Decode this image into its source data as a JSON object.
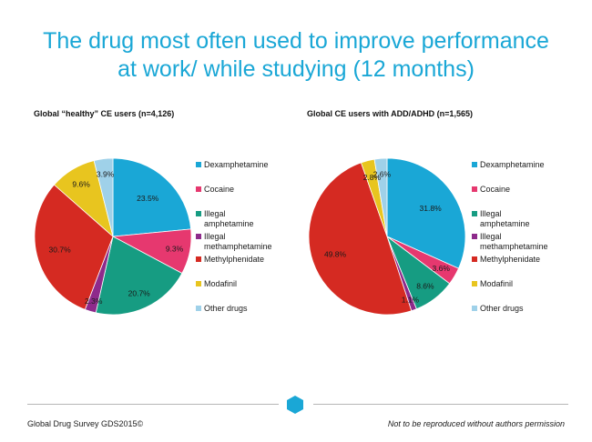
{
  "header": {
    "title_line1": "The drug most often used to improve performance",
    "title_line2": "at work/ while studying (12 months)"
  },
  "colors": {
    "title": "#1aa7d6",
    "Dexamphetamine": "#1aa7d6",
    "Cocaine": "#e6386f",
    "Illegal amphetamine": "#169c82",
    "Illegal methamphetamine": "#8e2a8b",
    "Methylphenidate": "#d52a22",
    "Modafinil": "#e8c51f",
    "Other drugs": "#9fd1e9"
  },
  "chart_data": [
    {
      "type": "pie",
      "title": "Global “healthy” CE users (n=4,126)",
      "categories": [
        "Dexamphetamine",
        "Cocaine",
        "Illegal amphetamine",
        "Illegal methamphetamine",
        "Methylphenidate",
        "Modafinil",
        "Other drugs"
      ],
      "legend_labels": [
        [
          "Dexamphetamine"
        ],
        [
          "Cocaine"
        ],
        [
          "Illegal",
          "amphetamine"
        ],
        [
          "Illegal",
          "methamphetamine"
        ],
        [
          "Methylphenidate"
        ],
        [
          "Modafinil"
        ],
        [
          "Other drugs"
        ]
      ],
      "values": [
        23.5,
        9.3,
        20.7,
        2.3,
        30.7,
        9.6,
        3.9
      ],
      "data_labels": [
        "23.5%",
        "9.3%",
        "20.7%",
        "2.3%",
        "30.7%",
        "9.6%",
        "3.9%"
      ],
      "legend_position": "right"
    },
    {
      "type": "pie",
      "title": "Global CE users with ADD/ADHD (n=1,565)",
      "categories": [
        "Dexamphetamine",
        "Cocaine",
        "Illegal amphetamine",
        "Illegal methamphetamine",
        "Methylphenidate",
        "Modafinil",
        "Other drugs"
      ],
      "legend_labels": [
        [
          "Dexamphetamine"
        ],
        [
          "Cocaine"
        ],
        [
          "Illegal",
          "amphetamine"
        ],
        [
          "Illegal",
          "methamphetamine"
        ],
        [
          "Methylphenidate"
        ],
        [
          "Modafinil"
        ],
        [
          "Other drugs"
        ]
      ],
      "values": [
        31.8,
        3.6,
        8.6,
        1.1,
        49.8,
        2.8,
        2.6
      ],
      "data_labels": [
        "31.8%",
        "3.6%",
        "8.6%",
        "1.1%",
        "49.8%",
        "2.8%",
        "2.6%"
      ],
      "legend_position": "right"
    }
  ],
  "footer": {
    "left": "Global Drug Survey GDS2015©",
    "right": "Not to be reproduced without authors permission"
  }
}
